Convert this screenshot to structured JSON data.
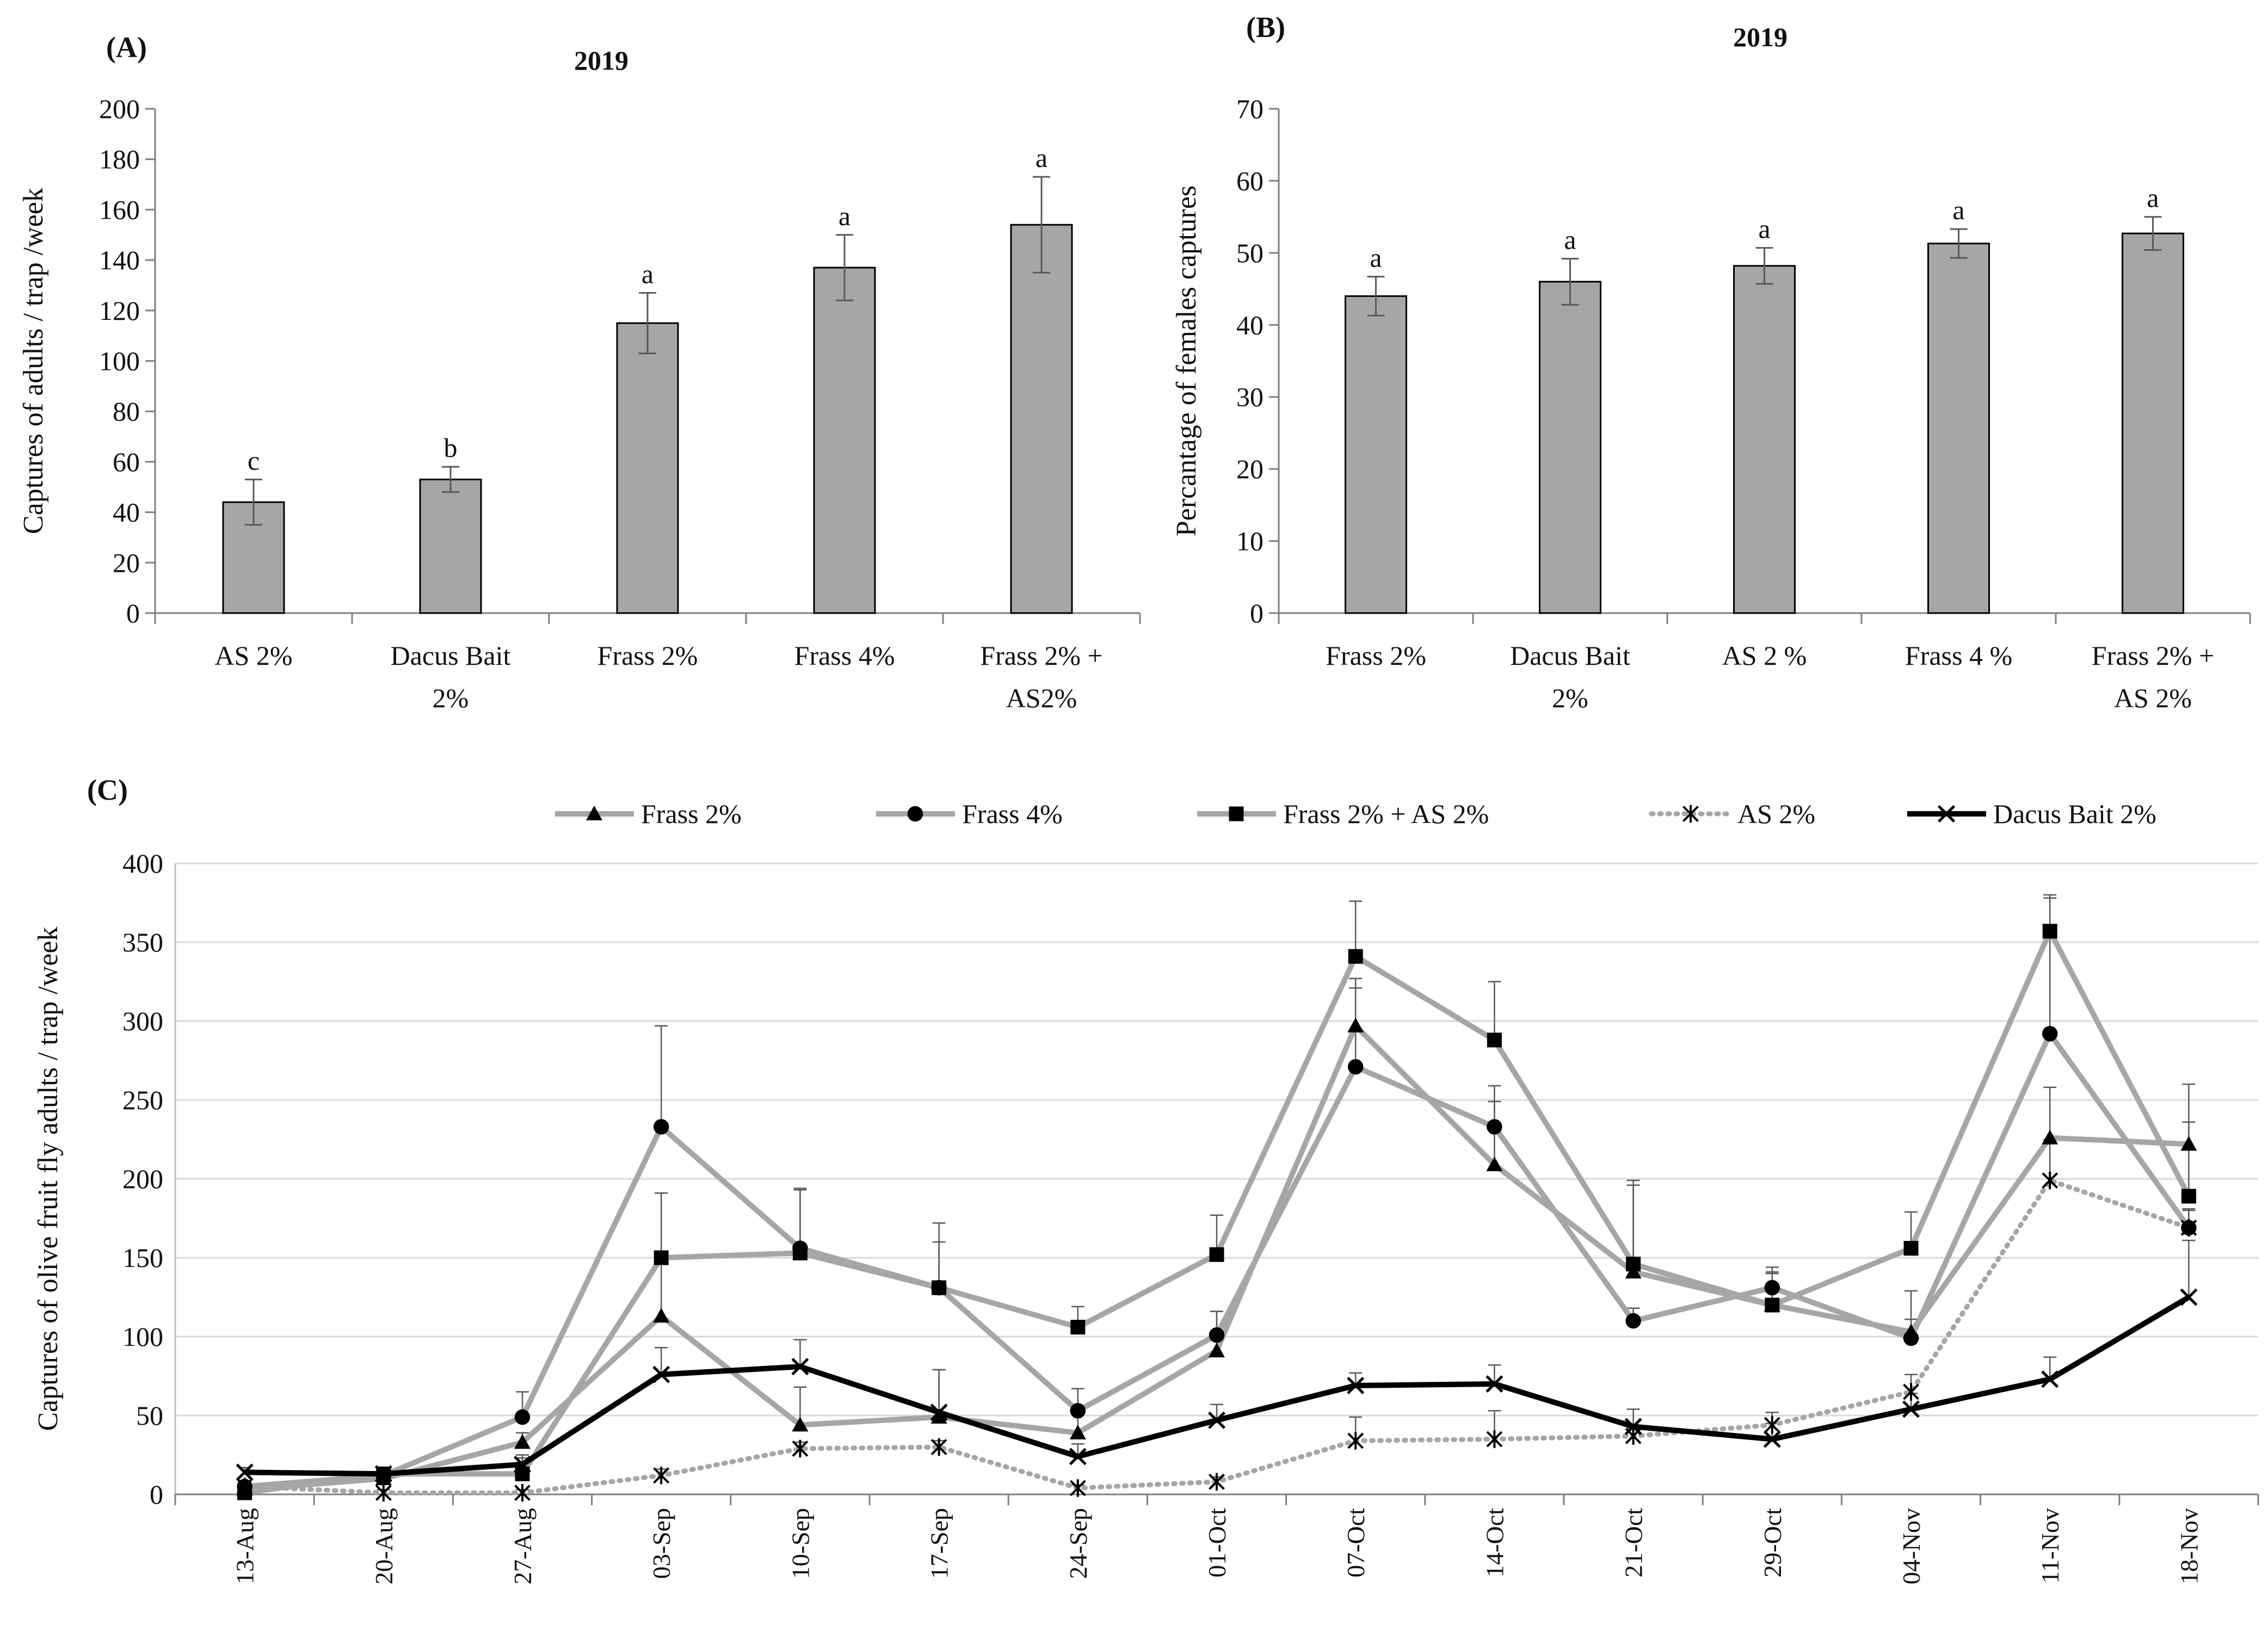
{
  "chart_data": [
    {
      "type": "bar",
      "panel_label": "(A)",
      "title": "2019",
      "xlabel": "",
      "ylabel": "Captures of adults / trap /week",
      "ylim": [
        0,
        200
      ],
      "yticks": [
        0,
        20,
        40,
        60,
        80,
        100,
        120,
        140,
        160,
        180,
        200
      ],
      "categories": [
        [
          "AS 2%"
        ],
        [
          "Dacus Bait",
          "2%"
        ],
        [
          "Frass 2%"
        ],
        [
          "Frass 4%"
        ],
        [
          "Frass 2% +",
          "AS2%"
        ]
      ],
      "values": [
        44,
        53,
        115,
        137,
        154
      ],
      "errors": [
        9,
        5,
        12,
        13,
        19
      ],
      "significance": [
        "c",
        "b",
        "a",
        "a",
        "a"
      ],
      "bar_color": "#a6a6a6"
    },
    {
      "type": "bar",
      "panel_label": "(B)",
      "title": "2019",
      "xlabel": "",
      "ylabel": "Percantage of females captures",
      "ylim": [
        0,
        70
      ],
      "yticks": [
        0,
        10,
        20,
        30,
        40,
        50,
        60,
        70
      ],
      "categories": [
        [
          "Frass 2%"
        ],
        [
          "Dacus Bait",
          "2%"
        ],
        [
          "AS 2 %"
        ],
        [
          "Frass 4 %"
        ],
        [
          "Frass 2% +",
          "AS 2%"
        ]
      ],
      "values": [
        44,
        46,
        48.2,
        51.3,
        52.7
      ],
      "errors": [
        2.7,
        3.2,
        2.5,
        2.0,
        2.3
      ],
      "significance": [
        "a",
        "a",
        "a",
        "a",
        "a"
      ],
      "bar_color": "#a6a6a6"
    },
    {
      "type": "line",
      "panel_label": "(C)",
      "xlabel": "",
      "ylabel": "Captures of olive fruit  fly adults / trap /week",
      "ylim": [
        0,
        400
      ],
      "yticks": [
        0,
        50,
        100,
        150,
        200,
        250,
        300,
        350,
        400
      ],
      "x": [
        "13-Aug",
        "20-Aug",
        "27-Aug",
        "03-Sep",
        "10-Sep",
        "17-Sep",
        "24-Sep",
        "01-Oct",
        "07-Oct",
        "14-Oct",
        "21-Oct",
        "29-Oct",
        "04-Nov",
        "11-Nov",
        "18-Nov"
      ],
      "series": [
        {
          "name": "Frass 2%",
          "marker": "triangle",
          "color": "#a6a6a6",
          "dash": "solid",
          "values": [
            3,
            10,
            33,
            113,
            44,
            49,
            39,
            91,
            297,
            209,
            141,
            120,
            103,
            226,
            222
          ],
          "errors": [
            3,
            3,
            6,
            78,
            24,
            30,
            12,
            25,
            30,
            40,
            55,
            20,
            26,
            32,
            14
          ]
        },
        {
          "name": "Frass 4%",
          "marker": "circle",
          "color": "#a6a6a6",
          "dash": "solid",
          "values": [
            5,
            12,
            49,
            233,
            156,
            131,
            53,
            101,
            271,
            233,
            110,
            131,
            99,
            292,
            169
          ],
          "errors": [
            3,
            4,
            16,
            64,
            37,
            29,
            14,
            15,
            50,
            26,
            8,
            13,
            12,
            86,
            11
          ]
        },
        {
          "name": "Frass 2% + AS 2%",
          "marker": "square",
          "color": "#a6a6a6",
          "dash": "solid",
          "values": [
            1,
            13,
            13,
            150,
            153,
            131,
            106,
            152,
            341,
            288,
            146,
            120,
            156,
            357,
            189
          ],
          "errors": [
            2,
            4,
            10,
            41,
            41,
            41,
            13,
            25,
            35,
            37,
            53,
            21,
            23,
            23,
            71
          ]
        },
        {
          "name": "AS 2%",
          "marker": "asterisk",
          "color": "#a6a6a6",
          "dash": "dotted",
          "values": [
            5,
            1,
            1,
            12,
            29,
            30,
            4,
            8,
            34,
            35,
            37,
            44,
            65,
            199,
            169
          ],
          "errors": [
            3,
            2,
            2,
            4,
            4,
            4,
            2,
            3,
            15,
            18,
            5,
            8,
            11,
            26,
            12
          ]
        },
        {
          "name": "Dacus Bait 2%",
          "marker": "x",
          "color": "#000000",
          "dash": "solid",
          "values": [
            14,
            13,
            19,
            76,
            81,
            52,
            24,
            47,
            69,
            70,
            43,
            35,
            54,
            73,
            125
          ],
          "errors": [
            3,
            4,
            6,
            17,
            17,
            27,
            8,
            10,
            8,
            12,
            11,
            10,
            10,
            14,
            36
          ]
        }
      ]
    }
  ]
}
